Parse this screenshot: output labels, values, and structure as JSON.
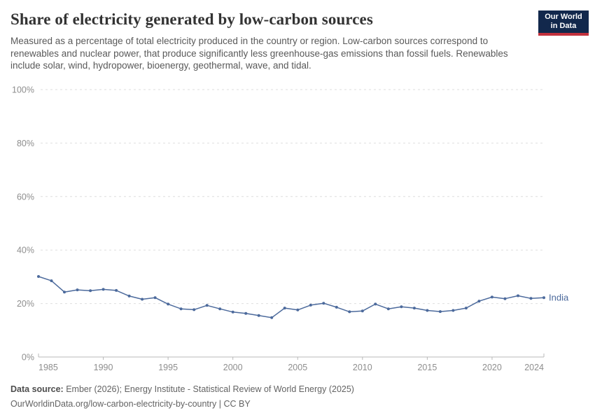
{
  "header": {
    "title": "Share of electricity generated by low-carbon sources",
    "subtitle": "Measured as a percentage of total electricity produced in the country or region. Low-carbon sources correspond to renewables and nuclear power, that produce significantly less greenhouse-gas emissions than fossil fuels. Renewables include solar, wind, hydropower, bioenergy, geothermal, wave, and tidal.",
    "logo": {
      "line1": "Our World",
      "line2": "in Data",
      "bg_color": "#12284C",
      "stripe_color": "#C2313D"
    }
  },
  "chart_data": {
    "type": "line",
    "title": "Share of electricity generated by low-carbon sources",
    "xlabel": "",
    "ylabel": "",
    "ylim": [
      0,
      100
    ],
    "yticks": [
      0,
      20,
      40,
      60,
      80,
      100
    ],
    "ytick_suffix": "%",
    "xticks": [
      1985,
      1990,
      1995,
      2000,
      2005,
      2010,
      2015,
      2020,
      2024
    ],
    "grid": "horizontal-dashed",
    "legend_position": "end-of-line",
    "x": [
      1985,
      1986,
      1987,
      1988,
      1989,
      1990,
      1991,
      1992,
      1993,
      1994,
      1995,
      1996,
      1997,
      1998,
      1999,
      2000,
      2001,
      2002,
      2003,
      2004,
      2005,
      2006,
      2007,
      2008,
      2009,
      2010,
      2011,
      2012,
      2013,
      2014,
      2015,
      2016,
      2017,
      2018,
      2019,
      2020,
      2021,
      2022,
      2023,
      2024
    ],
    "series": [
      {
        "name": "India",
        "color": "#4C6A9C",
        "values": [
          30.1,
          28.5,
          24.3,
          25.1,
          24.8,
          25.3,
          24.9,
          22.8,
          21.6,
          22.2,
          19.8,
          18.0,
          17.7,
          19.3,
          18.0,
          16.8,
          16.3,
          15.5,
          14.7,
          18.3,
          17.6,
          19.4,
          20.1,
          18.6,
          16.9,
          17.2,
          19.8,
          18.0,
          18.8,
          18.3,
          17.4,
          17.0,
          17.4,
          18.3,
          20.9,
          22.4,
          21.8,
          22.9,
          21.9,
          22.2
        ]
      }
    ],
    "axis_colors": {
      "grid": "#DEDEDE",
      "baseline": "#B8B8B8",
      "tick_label": "#8E8E8E"
    }
  },
  "footer": {
    "source_label": "Data source:",
    "source_text": " Ember (2026); Energy Institute - Statistical Review of World Energy (2025)",
    "url_line": "OurWorldinData.org/low-carbon-electricity-by-country | CC BY"
  }
}
